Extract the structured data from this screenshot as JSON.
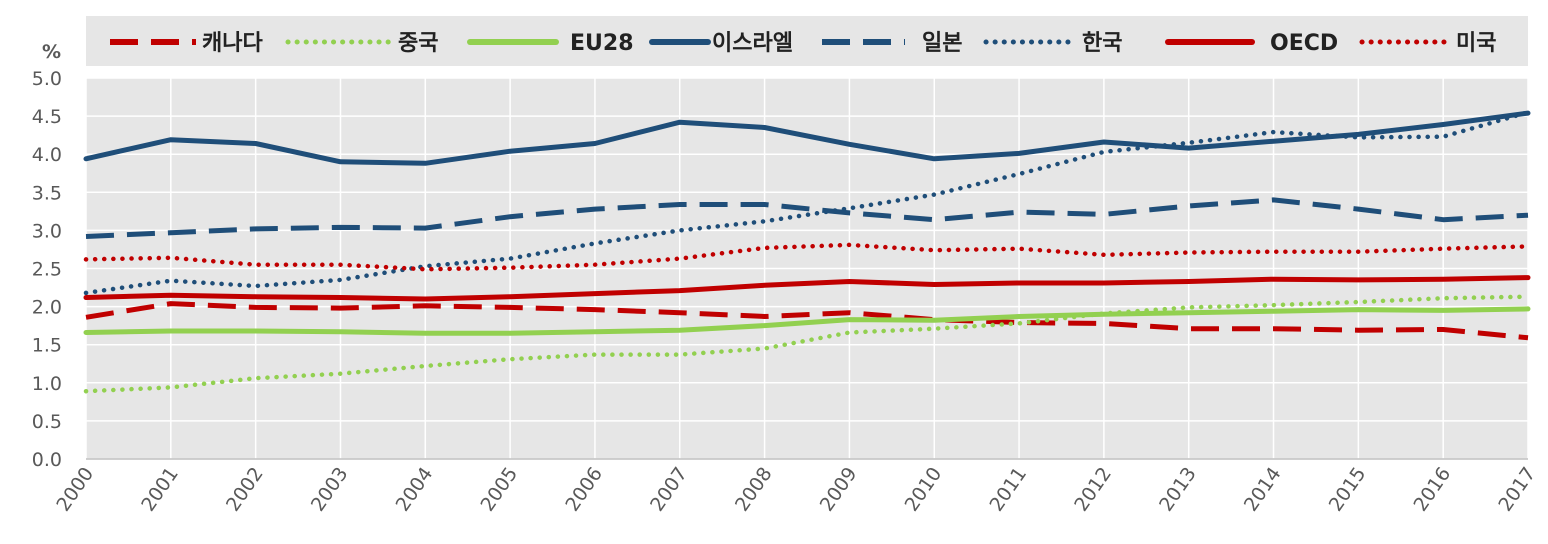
{
  "chart_data": {
    "type": "line",
    "unit_label": "%",
    "x": [
      "2000",
      "2001",
      "2002",
      "2003",
      "2004",
      "2005",
      "2006",
      "2007",
      "2008",
      "2009",
      "2010",
      "2011",
      "2012",
      "2013",
      "2014",
      "2015",
      "2016",
      "2017"
    ],
    "ylim": [
      0,
      5.0
    ],
    "yticks": [
      "0.0",
      "0.5",
      "1.0",
      "1.5",
      "2.0",
      "2.5",
      "3.0",
      "3.5",
      "4.0",
      "4.5",
      "5.0"
    ],
    "grid": true,
    "legend_position": "top",
    "series": [
      {
        "name": "캐나다",
        "color": "#c00000",
        "style": "dashed",
        "values": [
          1.86,
          2.04,
          1.99,
          1.98,
          2.01,
          1.99,
          1.96,
          1.92,
          1.87,
          1.92,
          1.83,
          1.79,
          1.78,
          1.71,
          1.71,
          1.69,
          1.7,
          1.59
        ]
      },
      {
        "name": "중국",
        "color": "#92d050",
        "style": "dotted",
        "values": [
          0.89,
          0.94,
          1.06,
          1.12,
          1.22,
          1.31,
          1.37,
          1.37,
          1.45,
          1.66,
          1.71,
          1.78,
          1.91,
          1.99,
          2.02,
          2.06,
          2.11,
          2.13
        ]
      },
      {
        "name": "EU28",
        "color": "#92d050",
        "style": "solid",
        "values": [
          1.66,
          1.68,
          1.68,
          1.67,
          1.65,
          1.65,
          1.67,
          1.69,
          1.75,
          1.83,
          1.82,
          1.87,
          1.9,
          1.92,
          1.94,
          1.96,
          1.95,
          1.97
        ]
      },
      {
        "name": "이스라엘",
        "color": "#1f4e79",
        "style": "solid",
        "values": [
          3.94,
          4.19,
          4.14,
          3.9,
          3.88,
          4.04,
          4.14,
          4.42,
          4.35,
          4.13,
          3.94,
          4.01,
          4.16,
          4.08,
          4.17,
          4.26,
          4.39,
          4.54
        ]
      },
      {
        "name": "일본",
        "color": "#1f4e79",
        "style": "dashed",
        "values": [
          2.92,
          2.97,
          3.02,
          3.04,
          3.03,
          3.18,
          3.28,
          3.34,
          3.34,
          3.23,
          3.14,
          3.24,
          3.21,
          3.32,
          3.4,
          3.28,
          3.14,
          3.2
        ]
      },
      {
        "name": "한국",
        "color": "#1f4e79",
        "style": "dotted",
        "values": [
          2.18,
          2.34,
          2.27,
          2.35,
          2.53,
          2.63,
          2.83,
          3.0,
          3.12,
          3.29,
          3.47,
          3.74,
          4.03,
          4.15,
          4.29,
          4.22,
          4.23,
          4.55
        ]
      },
      {
        "name": "OECD",
        "color": "#c00000",
        "style": "solid",
        "values": [
          2.12,
          2.15,
          2.13,
          2.12,
          2.1,
          2.13,
          2.17,
          2.21,
          2.28,
          2.33,
          2.29,
          2.31,
          2.31,
          2.33,
          2.36,
          2.35,
          2.36,
          2.38
        ]
      },
      {
        "name": "미국",
        "color": "#c00000",
        "style": "dotted",
        "values": [
          2.62,
          2.64,
          2.55,
          2.55,
          2.49,
          2.51,
          2.55,
          2.63,
          2.77,
          2.81,
          2.74,
          2.76,
          2.68,
          2.71,
          2.72,
          2.72,
          2.76,
          2.79
        ]
      }
    ]
  }
}
